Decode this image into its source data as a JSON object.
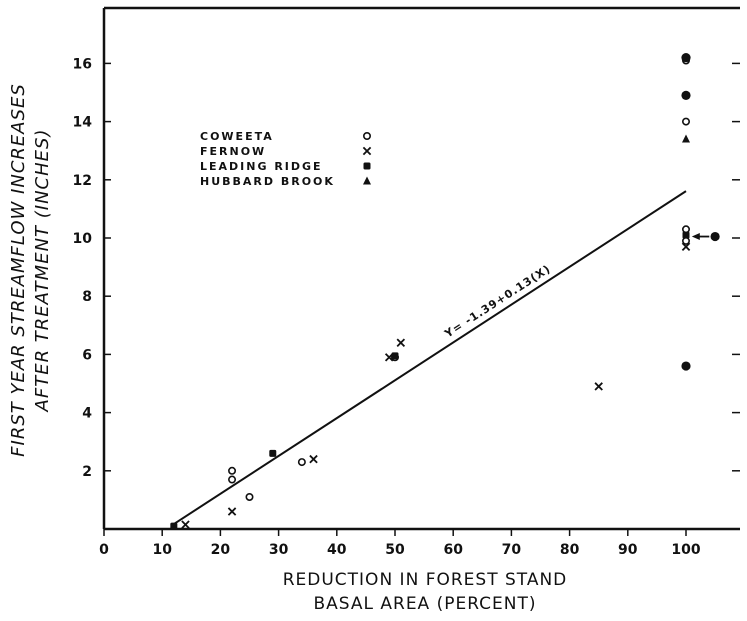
{
  "chart_data": {
    "type": "scatter",
    "title": "",
    "xlabel_lines": [
      "REDUCTION IN FOREST STAND",
      "BASAL AREA (PERCENT)"
    ],
    "ylabel_lines": [
      "FIRST YEAR STREAMFLOW INCREASES",
      "AFTER TREATMENT (INCHES)"
    ],
    "xlim": [
      0,
      110
    ],
    "ylim": [
      0,
      17.5
    ],
    "x_ticks": [
      0,
      10,
      20,
      30,
      40,
      50,
      60,
      70,
      80,
      90,
      100
    ],
    "x_tick_labels": [
      "0",
      "10",
      "20",
      "30",
      "40",
      "50",
      "60",
      "70",
      "80",
      "90",
      "100"
    ],
    "y_ticks": [
      2,
      4,
      6,
      8,
      10,
      12,
      14,
      16
    ],
    "y_tick_labels": [
      "2",
      "4",
      "6",
      "8",
      "10",
      "12",
      "14",
      "16"
    ],
    "grid": false,
    "legend_position": "upper-left",
    "regression": {
      "label": "Y= -1.39+0.13(X)",
      "x_start": 12,
      "x_end": 100,
      "intercept": -1.39,
      "slope": 0.13
    },
    "series": [
      {
        "name": "COWEETA",
        "marker": "o",
        "points": [
          [
            22,
            2.0
          ],
          [
            22,
            1.7
          ],
          [
            25,
            1.1
          ],
          [
            34,
            2.3
          ],
          [
            50,
            5.9
          ],
          [
            100,
            14.9
          ],
          [
            100,
            14.0
          ],
          [
            100,
            10.3
          ],
          [
            100,
            9.9
          ],
          [
            100,
            16.1
          ]
        ]
      },
      {
        "name": "FERNOW",
        "marker": "x",
        "points": [
          [
            14,
            0.15
          ],
          [
            22,
            0.6
          ],
          [
            36,
            2.4
          ],
          [
            49,
            5.9
          ],
          [
            51,
            6.4
          ],
          [
            85,
            4.9
          ],
          [
            100,
            9.7
          ]
        ]
      },
      {
        "name": "LEADING RIDGE",
        "marker": "■",
        "points": [
          [
            12,
            0.1
          ],
          [
            29,
            2.6
          ],
          [
            50,
            5.95
          ],
          [
            100,
            10.1
          ]
        ]
      },
      {
        "name": "HUBBARD BROOK",
        "marker": "▲",
        "points": [
          [
            100,
            13.4
          ]
        ]
      },
      {
        "name": "",
        "marker": "●",
        "points": [
          [
            100,
            16.2
          ],
          [
            100,
            14.9
          ],
          [
            100,
            5.6
          ],
          [
            105,
            10.05
          ]
        ]
      }
    ],
    "annotations": [
      {
        "type": "arrow",
        "from": [
          104,
          10.05
        ],
        "to": [
          101,
          10.05
        ]
      }
    ]
  }
}
